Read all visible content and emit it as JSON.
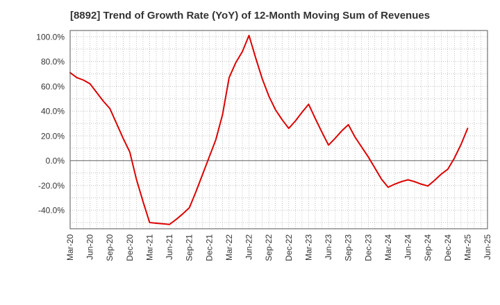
{
  "chart_data": {
    "type": "line",
    "title": "[8892]  Trend of Growth Rate (YoY) of 12-Month Moving Sum of Revenues",
    "xlabel": "",
    "ylabel": "",
    "x_ticks": [
      "Mar-20",
      "Jun-20",
      "Sep-20",
      "Dec-20",
      "Mar-21",
      "Jun-21",
      "Sep-21",
      "Dec-21",
      "Mar-22",
      "Jun-22",
      "Sep-22",
      "Dec-22",
      "Mar-23",
      "Jun-23",
      "Sep-23",
      "Dec-23",
      "Mar-24",
      "Jun-24",
      "Sep-24",
      "Dec-24",
      "Mar-25",
      "Jun-25"
    ],
    "y_ticks": [
      "100.0%",
      "80.0%",
      "60.0%",
      "40.0%",
      "20.0%",
      "0.0%",
      "-20.0%",
      "-40.0%"
    ],
    "y_tick_values": [
      100,
      80,
      60,
      40,
      20,
      0,
      -20,
      -40
    ],
    "ylim": [
      -55,
      105
    ],
    "grid": true,
    "line_color": "#dd0000",
    "series": [
      {
        "x": [
          "Mar-20",
          "Apr-20",
          "May-20",
          "Jun-20",
          "Jul-20",
          "Aug-20",
          "Sep-20",
          "Oct-20",
          "Nov-20",
          "Dec-20",
          "Jan-21",
          "Feb-21",
          "Mar-21",
          "Apr-21",
          "May-21",
          "Jun-21",
          "Jul-21",
          "Aug-21",
          "Sep-21",
          "Oct-21",
          "Nov-21",
          "Dec-21",
          "Jan-22",
          "Feb-22",
          "Mar-22",
          "Apr-22",
          "May-22",
          "Jun-22",
          "Jul-22",
          "Aug-22",
          "Sep-22",
          "Oct-22",
          "Nov-22",
          "Dec-22",
          "Jan-23",
          "Feb-23",
          "Mar-23",
          "Apr-23",
          "May-23",
          "Jun-23",
          "Jul-23",
          "Aug-23",
          "Sep-23",
          "Oct-23",
          "Nov-23",
          "Dec-23",
          "Jan-24",
          "Feb-24",
          "Mar-24",
          "Apr-24",
          "May-24",
          "Jun-24",
          "Jul-24",
          "Aug-24",
          "Sep-24",
          "Oct-24",
          "Nov-24",
          "Dec-24",
          "Jan-25",
          "Feb-25",
          "Mar-25"
        ],
        "values": [
          71,
          67,
          65,
          62,
          55,
          48,
          42,
          30,
          18,
          7,
          -15,
          -33,
          -50,
          -50.5,
          -51,
          -51.5,
          -47.5,
          -43,
          -38,
          -25,
          -11,
          3,
          17,
          37,
          67,
          79,
          88,
          101,
          83,
          66,
          52,
          41,
          33,
          26,
          32,
          39,
          45.5,
          34,
          23,
          12.5,
          18,
          24,
          29,
          19,
          11,
          3,
          -6,
          -15,
          -21.5,
          -19,
          -17,
          -15.5,
          -17,
          -19,
          -20.5,
          -16,
          -11,
          -7,
          2,
          13,
          26
        ]
      }
    ]
  }
}
